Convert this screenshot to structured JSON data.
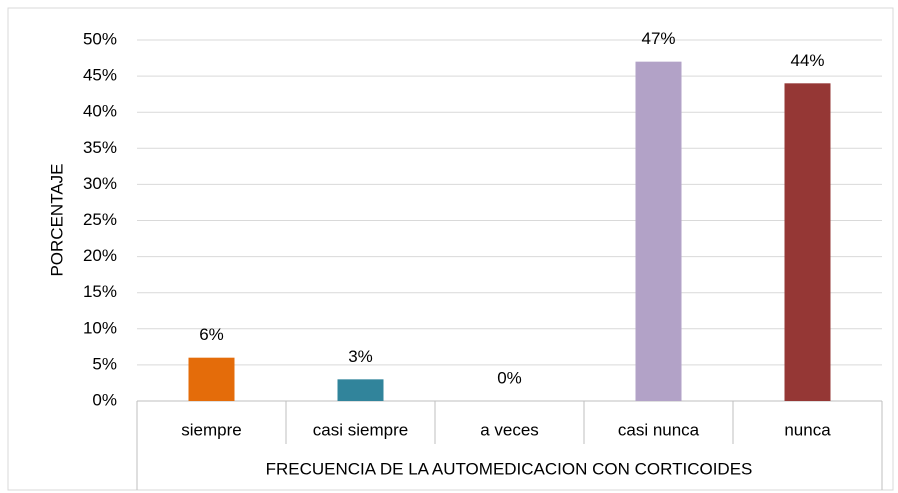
{
  "chart_data": {
    "type": "bar",
    "categories": [
      "siempre",
      "casi siempre",
      "a veces",
      "casi nunca",
      "nunca"
    ],
    "values": [
      6,
      3,
      0,
      47,
      44
    ],
    "value_labels": [
      "6%",
      "3%",
      "0%",
      "47%",
      "44%"
    ],
    "colors": [
      "#e46c0a",
      "#31849b",
      "#8064a2",
      "#b2a2c7",
      "#953735"
    ],
    "x_label": "FRECUENCIA DE LA AUTOMEDICACION CON CORTICOIDES",
    "y_label": "PORCENTAJE",
    "ylim": [
      0,
      50
    ],
    "yticks": [
      {
        "value": 0,
        "label": "0%"
      },
      {
        "value": 5,
        "label": "5%"
      },
      {
        "value": 10,
        "label": "10%"
      },
      {
        "value": 15,
        "label": "15%"
      },
      {
        "value": 20,
        "label": "20%"
      },
      {
        "value": 25,
        "label": "25%"
      },
      {
        "value": 30,
        "label": "30%"
      },
      {
        "value": 35,
        "label": "35%"
      },
      {
        "value": 40,
        "label": "40%"
      },
      {
        "value": 45,
        "label": "45%"
      },
      {
        "value": 50,
        "label": "50%"
      }
    ],
    "grid": true
  }
}
